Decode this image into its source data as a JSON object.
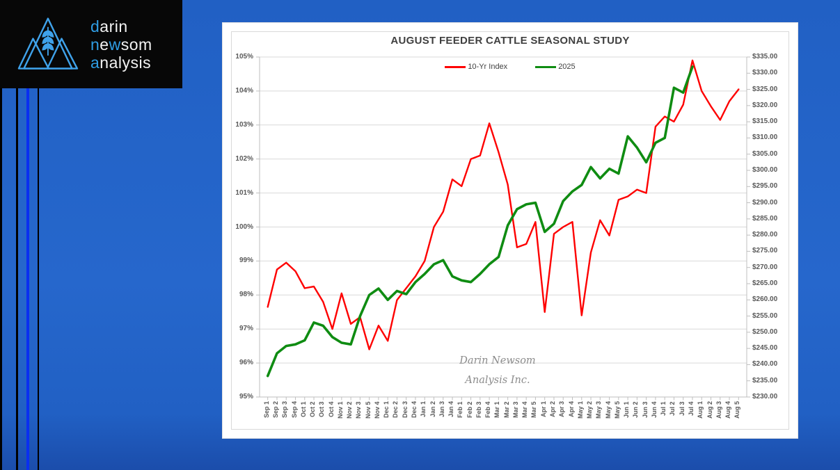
{
  "page": {
    "background_color": "#2465c9",
    "stripes": [
      {
        "x": 0,
        "width": 3,
        "color": "#000000"
      },
      {
        "x": 23,
        "width": 3,
        "color": "#000000"
      },
      {
        "x": 37.5,
        "width": 4.5,
        "color": "#0a2ff0"
      },
      {
        "x": 53.5,
        "width": 2.5,
        "color": "#000000"
      }
    ]
  },
  "logo": {
    "accent_color": "#2f9de4",
    "mark_color": "#3fa2ea",
    "lines": [
      [
        {
          "text": "d",
          "accent": true
        },
        {
          "text": "arin",
          "accent": false
        }
      ],
      [
        {
          "text": "n",
          "accent": true
        },
        {
          "text": "e",
          "accent": false
        },
        {
          "text": "w",
          "accent": true
        },
        {
          "text": "som",
          "accent": false
        }
      ],
      [
        {
          "text": "a",
          "accent": true
        },
        {
          "text": "nalysis",
          "accent": false
        }
      ]
    ]
  },
  "watermark": {
    "line1": "Darin Newsom",
    "line2": "Analysis Inc."
  },
  "chart_data": {
    "type": "line",
    "title": "AUGUST FEEDER CATTLE SEASONAL STUDY",
    "legend_position": "top",
    "grid": true,
    "categories": [
      "Sep 1",
      "Sep 2",
      "Sep 3",
      "Sep 4",
      "Oct 1",
      "Oct 2",
      "Oct 3",
      "Oct 4",
      "Nov 1",
      "Nov 2",
      "Nov 3",
      "Nov 5",
      "Nov 4",
      "Dec 1",
      "Dec 2",
      "Dec 3",
      "Dec 4",
      "Jan 1",
      "Jan 2",
      "Jan 3",
      "Jan 4",
      "Feb 1",
      "Feb 2",
      "Feb 3",
      "Feb 4",
      "Mar 1",
      "Mar 2",
      "Mar 3",
      "Mar 4",
      "Mar 5",
      "Apr 1",
      "Apr 2",
      "Apr 3",
      "Apr 4",
      "May 1",
      "May 2",
      "May 3",
      "May 4",
      "May 5",
      "Jun 1",
      "Jun 2",
      "Jun 3",
      "Jun 4",
      "Jul 1",
      "Jul 2",
      "Jul 3",
      "Jul 4",
      "Aug 1",
      "Aug 2",
      "Aug 3",
      "Aug 4",
      "Aug 5"
    ],
    "series": [
      {
        "name": "10-Yr Index",
        "axis": "left",
        "color": "#fe0000",
        "stroke_width": 2.4,
        "unit": "percent",
        "values": [
          97.65,
          98.75,
          98.95,
          98.7,
          98.2,
          98.25,
          97.8,
          97.0,
          98.05,
          97.15,
          97.35,
          96.4,
          97.1,
          96.65,
          97.85,
          98.2,
          98.55,
          99.0,
          100.0,
          100.45,
          101.4,
          101.2,
          102.0,
          102.1,
          103.05,
          102.2,
          101.25,
          99.4,
          99.5,
          100.15,
          97.5,
          99.8,
          100.0,
          100.15,
          97.4,
          99.25,
          100.2,
          99.75,
          100.8,
          100.9,
          101.1,
          101.0,
          102.95,
          103.25,
          103.1,
          103.6,
          104.9,
          104.0,
          103.55,
          103.15,
          103.7,
          104.05
        ]
      },
      {
        "name": "2025",
        "axis": "right",
        "color": "#0f8c12",
        "stroke_width": 3.6,
        "unit": "usd",
        "values": [
          236.5,
          243.5,
          245.75,
          246.25,
          247.5,
          253.0,
          252.0,
          248.5,
          246.75,
          246.25,
          255.0,
          261.5,
          263.5,
          260.0,
          262.75,
          261.75,
          265.5,
          268.0,
          271.0,
          272.25,
          267.25,
          266.0,
          265.5,
          268.0,
          271.0,
          273.25,
          283.0,
          288.0,
          289.5,
          290.0,
          281.0,
          283.5,
          290.5,
          293.5,
          295.5,
          301.0,
          297.5,
          300.5,
          299.0,
          310.5,
          307.0,
          302.5,
          308.5,
          310.0,
          325.5,
          324.0,
          332.0
        ]
      }
    ],
    "left_axis": {
      "min": 95,
      "max": 105,
      "step": 1,
      "tick_labels": [
        "95%",
        "96%",
        "97%",
        "98%",
        "99%",
        "100%",
        "101%",
        "102%",
        "103%",
        "104%",
        "105%"
      ]
    },
    "right_axis": {
      "min": 230,
      "max": 335,
      "step": 5,
      "tick_labels": [
        "$230.00",
        "$235.00",
        "$240.00",
        "$245.00",
        "$250.00",
        "$255.00",
        "$260.00",
        "$265.00",
        "$270.00",
        "$275.00",
        "$280.00",
        "$285.00",
        "$290.00",
        "$295.00",
        "$300.00",
        "$305.00",
        "$310.00",
        "$315.00",
        "$320.00",
        "$325.00",
        "$330.00",
        "$335.00"
      ]
    }
  }
}
